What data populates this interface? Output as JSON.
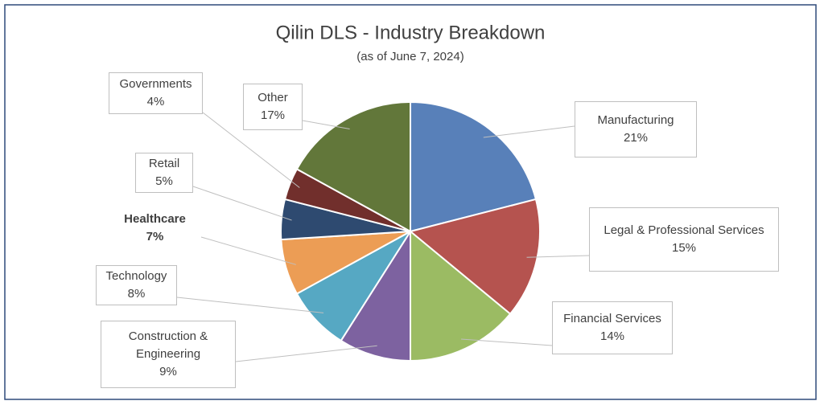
{
  "chart_data": {
    "type": "pie",
    "title": "Qilin DLS - Industry Breakdown",
    "subtitle": "(as of June 7, 2024)",
    "categories": [
      "Manufacturing",
      "Legal & Professional Services",
      "Financial Services",
      "Construction & Engineering",
      "Technology",
      "Healthcare",
      "Retail",
      "Governments",
      "Other"
    ],
    "values": [
      21,
      15,
      14,
      9,
      8,
      7,
      5,
      4,
      17
    ],
    "value_labels": [
      "21%",
      "15%",
      "14%",
      "9%",
      "8%",
      "7%",
      "5%",
      "4%",
      "17%"
    ],
    "colors": [
      "#5880b9",
      "#b5534f",
      "#9bbb63",
      "#7d62a0",
      "#56a8c3",
      "#ec9d55",
      "#2e4a70",
      "#712f2c",
      "#62773a"
    ],
    "bold_index": 5
  }
}
